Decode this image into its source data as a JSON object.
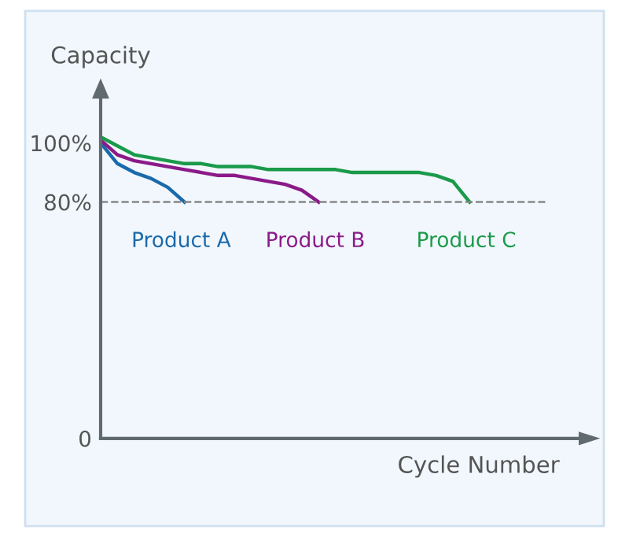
{
  "chart_data": {
    "type": "line",
    "xlabel": "Cycle Number",
    "ylabel": "Capacity",
    "categories": [
      null,
      null,
      null,
      null,
      null,
      null,
      null,
      null,
      null,
      null,
      null,
      null,
      null,
      null,
      null,
      null,
      null,
      null,
      null,
      null,
      null,
      null,
      null,
      null,
      null,
      null,
      null,
      null,
      null
    ],
    "series": [
      {
        "name": "Product A",
        "color": "#1a6aab",
        "values": [
          100,
          93,
          90,
          88,
          85,
          80,
          null,
          null,
          null,
          null,
          null,
          null,
          null,
          null,
          null,
          null,
          null,
          null,
          null,
          null,
          null,
          null,
          null,
          null,
          null,
          null,
          null,
          null,
          null
        ]
      },
      {
        "name": "Product B",
        "color": "#8b1a89",
        "values": [
          101,
          96,
          94,
          93,
          92,
          91,
          90,
          89,
          89,
          88,
          87,
          86,
          84,
          80,
          null,
          null,
          null,
          null,
          null,
          null,
          null,
          null,
          null,
          null,
          null,
          null,
          null,
          null,
          null
        ]
      },
      {
        "name": "Product C",
        "color": "#1a9a4a",
        "values": [
          102,
          99,
          96,
          95,
          94,
          93,
          93,
          92,
          92,
          92,
          91,
          91,
          91,
          91,
          91,
          90,
          90,
          90,
          90,
          90,
          89,
          87,
          80,
          null,
          null,
          null,
          null,
          null,
          null
        ]
      }
    ],
    "ylim": [
      0,
      115
    ],
    "yticks": [
      0,
      {
        "value": 80,
        "label": "80%"
      },
      {
        "value": 100,
        "label": "100%"
      }
    ],
    "ref_lines": [
      {
        "axis": "y",
        "value": 80,
        "color": "#888888",
        "line_style": "dashed"
      }
    ],
    "grid": false,
    "legend": false,
    "line_style": "solid",
    "marker": "none"
  }
}
